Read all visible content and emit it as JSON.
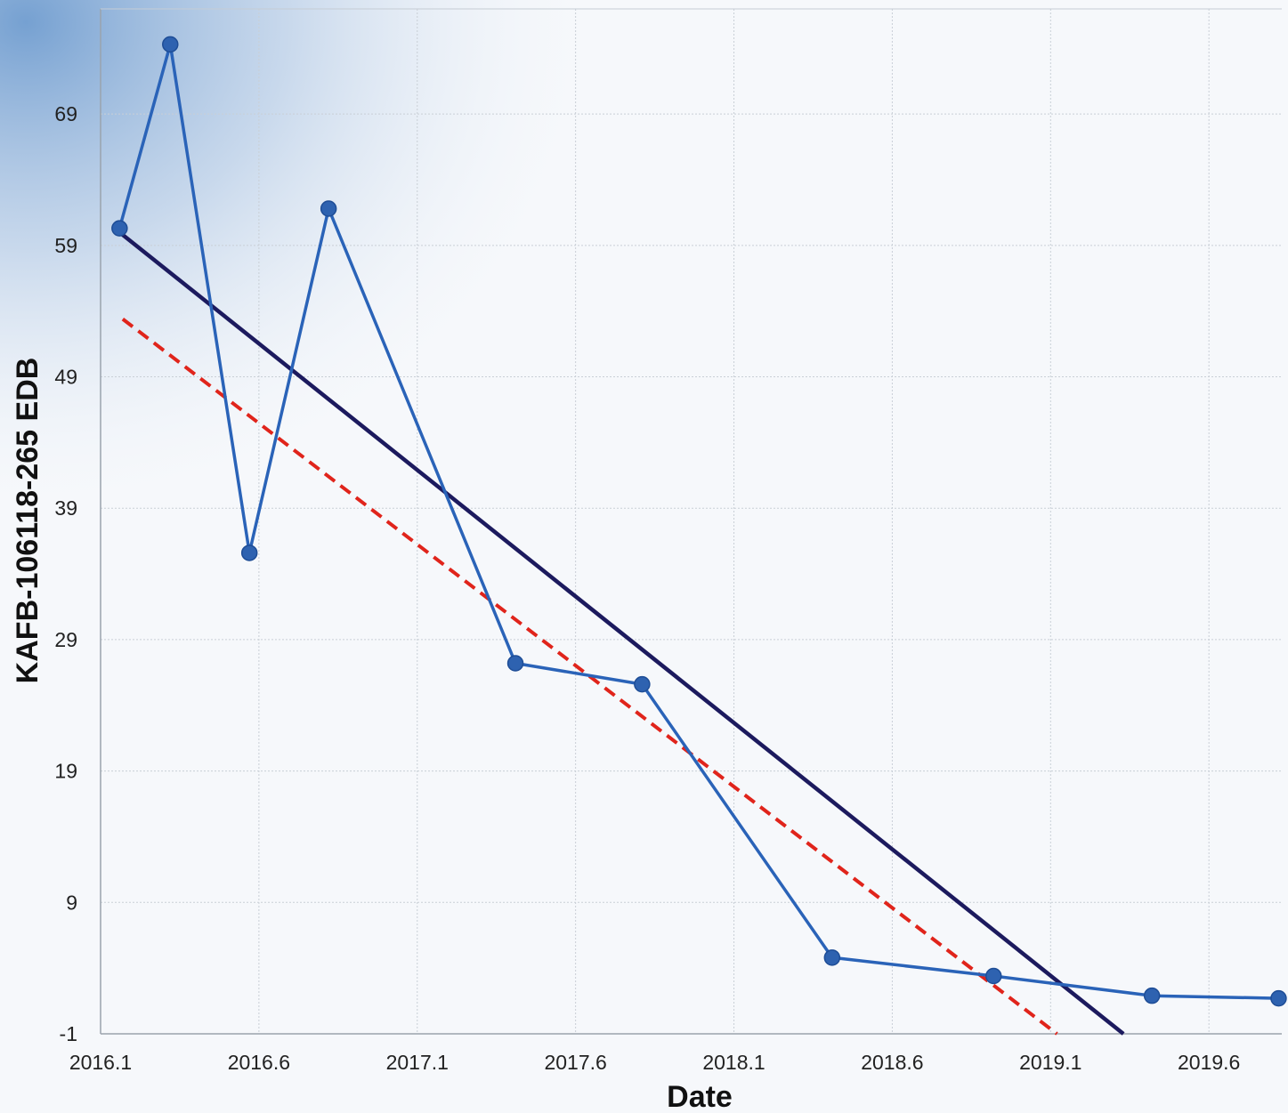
{
  "chart_data": {
    "type": "line",
    "title": "",
    "xlabel": "Date",
    "ylabel": "KAFB-106118-265 EDB",
    "xlim": [
      2016.1,
      2019.83
    ],
    "ylim": [
      -1,
      77
    ],
    "x_ticks": [
      "2016.1",
      "2016.6",
      "2017.1",
      "2017.6",
      "2018.1",
      "2018.6",
      "2019.1",
      "2019.6"
    ],
    "y_ticks": [
      "-1",
      "9",
      "19",
      "29",
      "39",
      "49",
      "59",
      "69"
    ],
    "grid": true,
    "series": [
      {
        "style": "line-with-markers",
        "color": "#2a63b8",
        "points": [
          {
            "x": 2016.16,
            "y": 60.3
          },
          {
            "x": 2016.32,
            "y": 74.3
          },
          {
            "x": 2016.57,
            "y": 35.6
          },
          {
            "x": 2016.82,
            "y": 61.8
          },
          {
            "x": 2017.41,
            "y": 27.2
          },
          {
            "x": 2017.81,
            "y": 25.6
          },
          {
            "x": 2018.41,
            "y": 4.8
          },
          {
            "x": 2018.92,
            "y": 3.4
          },
          {
            "x": 2019.42,
            "y": 1.9
          },
          {
            "x": 2019.82,
            "y": 1.7
          }
        ]
      },
      {
        "style": "solid-trend",
        "color": "#1c1a5e",
        "points": [
          {
            "x": 2016.16,
            "y": 60.0
          },
          {
            "x": 2019.33,
            "y": -1.0
          }
        ]
      },
      {
        "style": "dashed-trend",
        "color": "#e0241b",
        "points": [
          {
            "x": 2016.17,
            "y": 53.4
          },
          {
            "x": 2019.12,
            "y": -1.0
          }
        ]
      }
    ]
  }
}
